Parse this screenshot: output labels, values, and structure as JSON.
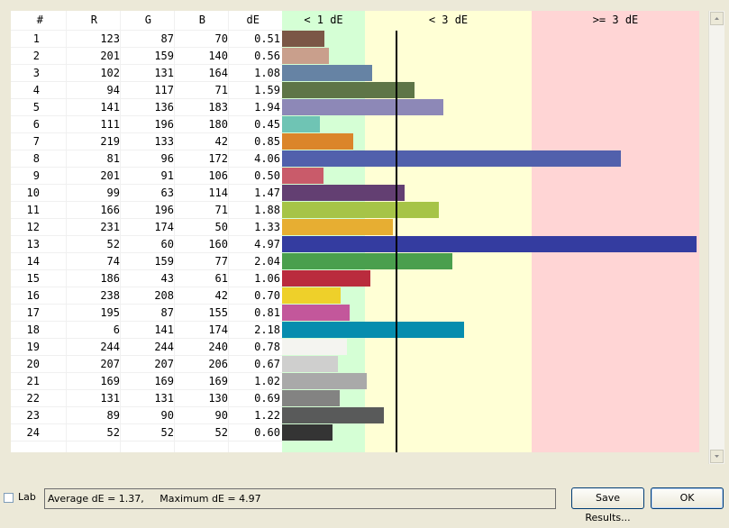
{
  "table": {
    "headers": {
      "index": "#",
      "r": "R",
      "g": "G",
      "b": "B",
      "de": "dE"
    },
    "zones": [
      {
        "label": "< 1 dE",
        "color": "#d5ffd5"
      },
      {
        "label": "< 3 dE",
        "color": "#ffffd5"
      },
      {
        "label": ">= 3 dE",
        "color": "#ffd5d5"
      }
    ],
    "threshold_line_de": 1.37,
    "rows": [
      {
        "index": "1",
        "r": "123",
        "g": "87",
        "b": "70",
        "de": "0.51",
        "de_value": 0.51,
        "color": "#7b5746"
      },
      {
        "index": "2",
        "r": "201",
        "g": "159",
        "b": "140",
        "de": "0.56",
        "de_value": 0.56,
        "color": "#c99f8c"
      },
      {
        "index": "3",
        "r": "102",
        "g": "131",
        "b": "164",
        "de": "1.08",
        "de_value": 1.08,
        "color": "#6683a4"
      },
      {
        "index": "4",
        "r": "94",
        "g": "117",
        "b": "71",
        "de": "1.59",
        "de_value": 1.59,
        "color": "#5e7547"
      },
      {
        "index": "5",
        "r": "141",
        "g": "136",
        "b": "183",
        "de": "1.94",
        "de_value": 1.94,
        "color": "#8d88b7"
      },
      {
        "index": "6",
        "r": "111",
        "g": "196",
        "b": "180",
        "de": "0.45",
        "de_value": 0.45,
        "color": "#6fc4b4"
      },
      {
        "index": "7",
        "r": "219",
        "g": "133",
        "b": "42",
        "de": "0.85",
        "de_value": 0.85,
        "color": "#db852a"
      },
      {
        "index": "8",
        "r": "81",
        "g": "96",
        "b": "172",
        "de": "4.06",
        "de_value": 4.06,
        "color": "#5160ac"
      },
      {
        "index": "9",
        "r": "201",
        "g": "91",
        "b": "106",
        "de": "0.50",
        "de_value": 0.5,
        "color": "#c95b6a"
      },
      {
        "index": "10",
        "r": "99",
        "g": "63",
        "b": "114",
        "de": "1.47",
        "de_value": 1.47,
        "color": "#633f72"
      },
      {
        "index": "11",
        "r": "166",
        "g": "196",
        "b": "71",
        "de": "1.88",
        "de_value": 1.88,
        "color": "#a6c447"
      },
      {
        "index": "12",
        "r": "231",
        "g": "174",
        "b": "50",
        "de": "1.33",
        "de_value": 1.33,
        "color": "#e7ae32"
      },
      {
        "index": "13",
        "r": "52",
        "g": "60",
        "b": "160",
        "de": "4.97",
        "de_value": 4.97,
        "color": "#343ca0"
      },
      {
        "index": "14",
        "r": "74",
        "g": "159",
        "b": "77",
        "de": "2.04",
        "de_value": 2.04,
        "color": "#4a9f4d"
      },
      {
        "index": "15",
        "r": "186",
        "g": "43",
        "b": "61",
        "de": "1.06",
        "de_value": 1.06,
        "color": "#ba2b3d"
      },
      {
        "index": "16",
        "r": "238",
        "g": "208",
        "b": "42",
        "de": "0.70",
        "de_value": 0.7,
        "color": "#eed02a"
      },
      {
        "index": "17",
        "r": "195",
        "g": "87",
        "b": "155",
        "de": "0.81",
        "de_value": 0.81,
        "color": "#c3579b"
      },
      {
        "index": "18",
        "r": "6",
        "g": "141",
        "b": "174",
        "de": "2.18",
        "de_value": 2.18,
        "color": "#068dae"
      },
      {
        "index": "19",
        "r": "244",
        "g": "244",
        "b": "240",
        "de": "0.78",
        "de_value": 0.78,
        "color": "#f4f4f0"
      },
      {
        "index": "20",
        "r": "207",
        "g": "207",
        "b": "206",
        "de": "0.67",
        "de_value": 0.67,
        "color": "#cfcfce"
      },
      {
        "index": "21",
        "r": "169",
        "g": "169",
        "b": "169",
        "de": "1.02",
        "de_value": 1.02,
        "color": "#a9a9a9"
      },
      {
        "index": "22",
        "r": "131",
        "g": "131",
        "b": "130",
        "de": "0.69",
        "de_value": 0.69,
        "color": "#838382"
      },
      {
        "index": "23",
        "r": "89",
        "g": "90",
        "b": "90",
        "de": "1.22",
        "de_value": 1.22,
        "color": "#595a5a"
      },
      {
        "index": "24",
        "r": "52",
        "g": "52",
        "b": "52",
        "de": "0.60",
        "de_value": 0.6,
        "color": "#343434"
      }
    ]
  },
  "footer": {
    "lab_label": "Lab",
    "lab_checked": false,
    "summary_text": "Average dE = 1.37,     Maximum dE = 4.97",
    "save_button_label": "Save Results...",
    "ok_button_label": "OK"
  },
  "icons": {
    "scroll_up": "triangle-up-icon",
    "scroll_down": "triangle-down-icon"
  }
}
